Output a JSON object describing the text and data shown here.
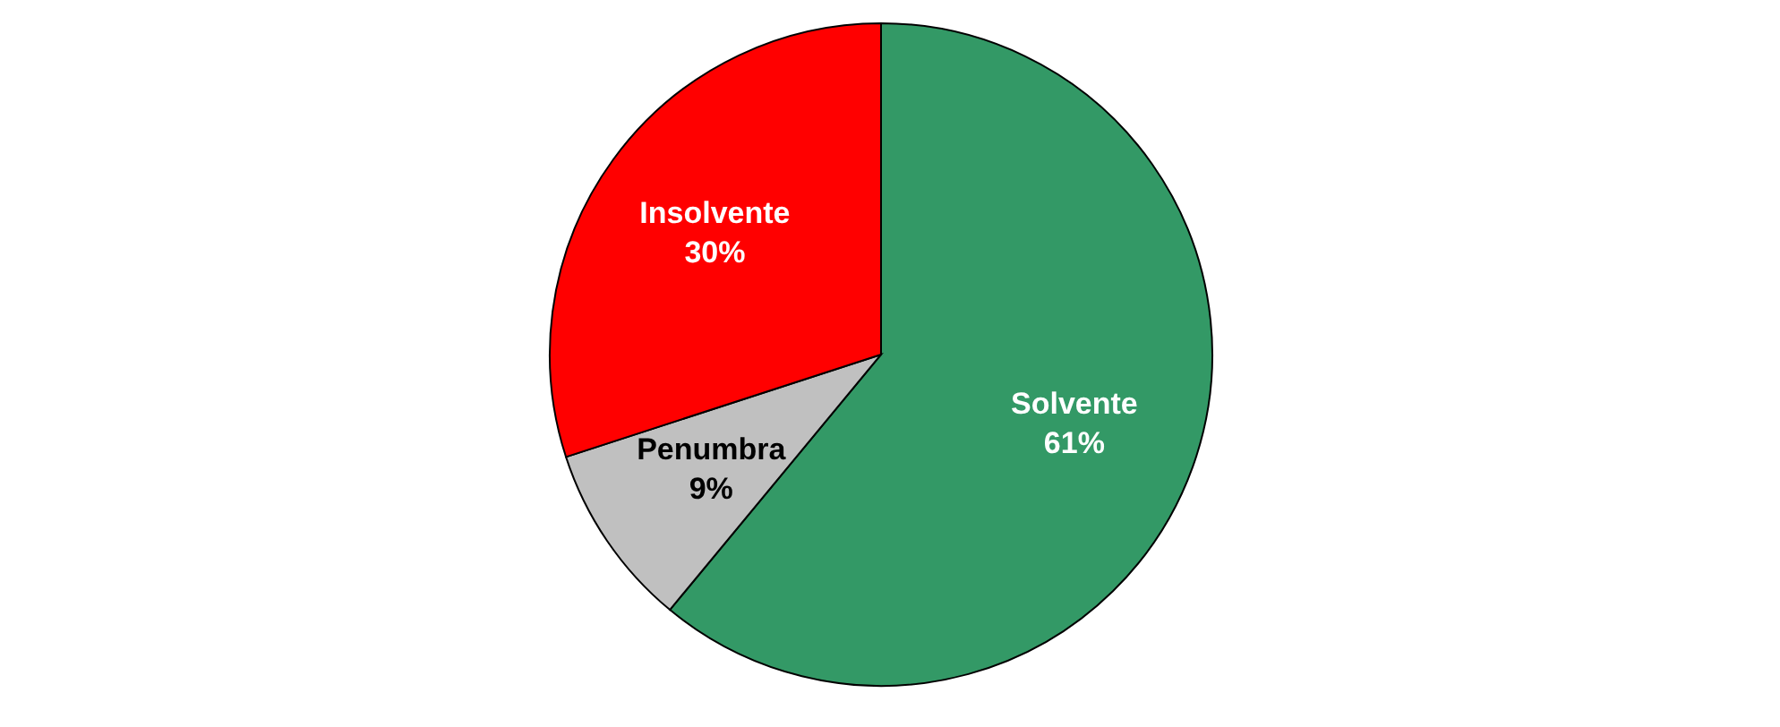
{
  "chart_data": {
    "type": "pie",
    "categories": [
      "Solvente",
      "Penumbra",
      "Insolvente"
    ],
    "values": [
      61,
      9,
      30
    ],
    "colors": [
      "#339966",
      "#c0c0c0",
      "#ff0000"
    ],
    "value_labels": [
      "61%",
      "9%",
      "30%"
    ],
    "legend": false
  }
}
